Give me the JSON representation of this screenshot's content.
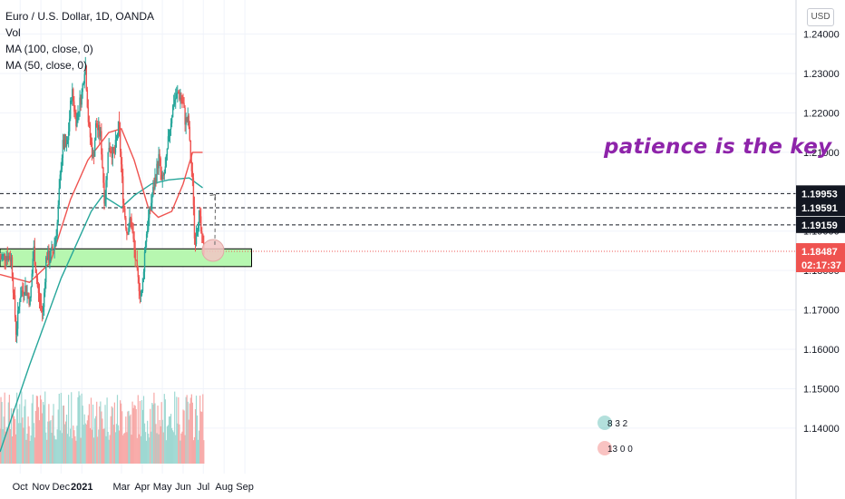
{
  "legend": {
    "symbol": "Euro / U.S. Dollar, 1D, OANDA",
    "vol": "Vol",
    "ma100": "MA (100, close, 0)",
    "ma50": "MA (50, close, 0)"
  },
  "currency_badge": "USD",
  "annotation": "patience is the key",
  "colors": {
    "up": "#26a69a",
    "down": "#ef5350",
    "ma100": "#26a69a",
    "ma50": "#ef5350",
    "zone_fill": "#b7f7b0",
    "annotation": "#8e24aa",
    "level_tag": "#131722",
    "price_tag": "#ef5350",
    "volume_up": "#9ed8d2",
    "volume_down": "#f7a8a6"
  },
  "chart_data": {
    "type": "candlestick",
    "title": "Euro / U.S. Dollar, 1D, OANDA",
    "y_ticks": [
      "1.24000",
      "1.23000",
      "1.22000",
      "1.21000",
      "1.20000",
      "1.19000",
      "1.18000",
      "1.17000",
      "1.16000",
      "1.15000",
      "1.14000"
    ],
    "y_tick_values": [
      1.24,
      1.23,
      1.22,
      1.21,
      1.2,
      1.19,
      1.18,
      1.17,
      1.16,
      1.15,
      1.14
    ],
    "ylim": [
      1.131,
      1.2445
    ],
    "x_ticks": [
      "Oct",
      "Nov",
      "Dec",
      "2021",
      "Mar",
      "Apr",
      "May",
      "Jun",
      "Jul",
      "Aug",
      "Sep"
    ],
    "x_tick_bold": [
      "2021"
    ],
    "close_path": [
      [
        "2020-09-01",
        1.183
      ],
      [
        "2020-09-10",
        1.184
      ],
      [
        "2020-09-18",
        1.183
      ],
      [
        "2020-09-25",
        1.164
      ],
      [
        "2020-10-01",
        1.174
      ],
      [
        "2020-10-08",
        1.176
      ],
      [
        "2020-10-16",
        1.172
      ],
      [
        "2020-10-21",
        1.186
      ],
      [
        "2020-10-28",
        1.174
      ],
      [
        "2020-11-04",
        1.169
      ],
      [
        "2020-11-09",
        1.184
      ],
      [
        "2020-11-13",
        1.183
      ],
      [
        "2020-11-20",
        1.186
      ],
      [
        "2020-11-25",
        1.191
      ],
      [
        "2020-12-01",
        1.207
      ],
      [
        "2020-12-04",
        1.212
      ],
      [
        "2020-12-10",
        1.211
      ],
      [
        "2020-12-17",
        1.226
      ],
      [
        "2020-12-23",
        1.218
      ],
      [
        "2021-01-01",
        1.225
      ],
      [
        "2021-01-06",
        1.233
      ],
      [
        "2021-01-11",
        1.217
      ],
      [
        "2021-01-18",
        1.208
      ],
      [
        "2021-01-22",
        1.217
      ],
      [
        "2021-01-29",
        1.214
      ],
      [
        "2021-02-04",
        1.197
      ],
      [
        "2021-02-10",
        1.212
      ],
      [
        "2021-02-18",
        1.209
      ],
      [
        "2021-02-25",
        1.217
      ],
      [
        "2021-03-04",
        1.197
      ],
      [
        "2021-03-09",
        1.19
      ],
      [
        "2021-03-15",
        1.193
      ],
      [
        "2021-03-25",
        1.178
      ],
      [
        "2021-03-31",
        1.173
      ],
      [
        "2021-04-06",
        1.188
      ],
      [
        "2021-04-13",
        1.196
      ],
      [
        "2021-04-20",
        1.203
      ],
      [
        "2021-04-26",
        1.209
      ],
      [
        "2021-04-30",
        1.202
      ],
      [
        "2021-05-06",
        1.206
      ],
      [
        "2021-05-11",
        1.215
      ],
      [
        "2021-05-18",
        1.223
      ],
      [
        "2021-05-25",
        1.225
      ],
      [
        "2021-06-01",
        1.222
      ],
      [
        "2021-06-04",
        1.218
      ],
      [
        "2021-06-09",
        1.218
      ],
      [
        "2021-06-11",
        1.211
      ],
      [
        "2021-06-16",
        1.2
      ],
      [
        "2021-06-18",
        1.187
      ],
      [
        "2021-06-23",
        1.193
      ],
      [
        "2021-06-25",
        1.194
      ],
      [
        "2021-06-30",
        1.186
      ],
      [
        "2021-07-02",
        1.1849
      ]
    ],
    "ma100_path": [
      [
        "2020-09-01",
        1.134
      ],
      [
        "2020-10-15",
        1.156
      ],
      [
        "2020-12-01",
        1.178
      ],
      [
        "2021-01-15",
        1.195
      ],
      [
        "2021-02-01",
        1.199
      ],
      [
        "2021-03-01",
        1.196
      ],
      [
        "2021-03-20",
        1.199
      ],
      [
        "2021-04-15",
        1.202
      ],
      [
        "2021-05-10",
        1.203
      ],
      [
        "2021-06-10",
        1.2035
      ],
      [
        "2021-06-30",
        1.201
      ]
    ],
    "ma50_path": [
      [
        "2020-09-01",
        1.179
      ],
      [
        "2020-10-15",
        1.177
      ],
      [
        "2020-11-15",
        1.182
      ],
      [
        "2020-12-15",
        1.198
      ],
      [
        "2021-01-10",
        1.208
      ],
      [
        "2021-02-10",
        1.215
      ],
      [
        "2021-03-01",
        1.216
      ],
      [
        "2021-03-20",
        1.208
      ],
      [
        "2021-04-10",
        1.196
      ],
      [
        "2021-04-25",
        1.1935
      ],
      [
        "2021-05-15",
        1.195
      ],
      [
        "2021-06-01",
        1.202
      ],
      [
        "2021-06-15",
        1.21
      ],
      [
        "2021-06-30",
        1.21
      ]
    ],
    "levels": [
      {
        "label": "1.19953",
        "value": 1.19953,
        "dashed": true
      },
      {
        "label": "1.19591",
        "value": 1.19591,
        "dashed": true
      },
      {
        "label": "1.19159",
        "value": 1.19159,
        "dashed": true
      }
    ],
    "support_zone": {
      "start": "2020-09-01",
      "end": "2021-09-11",
      "top": 1.1855,
      "bottom": 1.181
    },
    "last_price": {
      "label": "1.18487",
      "value": 1.18487,
      "countdown": "02:17:37"
    },
    "projection": {
      "from": [
        "2021-07-02",
        1.1849
      ],
      "to": [
        "2021-07-11",
        1.1995
      ]
    },
    "volume_badges": [
      "8 3 2",
      "13 0 0"
    ]
  }
}
